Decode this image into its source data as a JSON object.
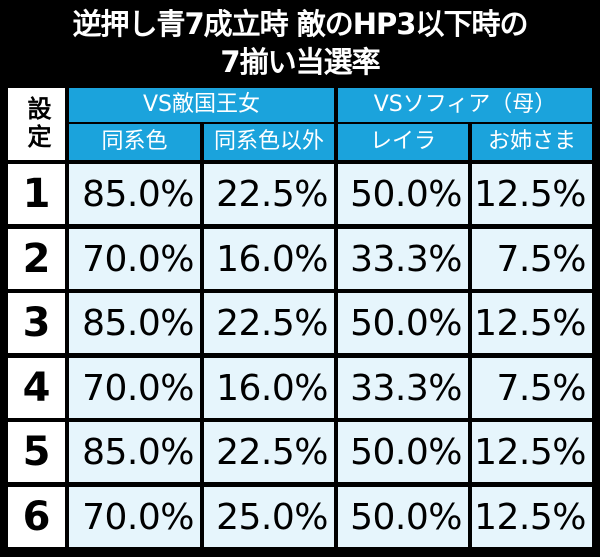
{
  "title": {
    "line1": "逆押し青7成立時 敵のHP3以下時の",
    "line2": "7揃い当選率"
  },
  "table": {
    "setting_header": "設定",
    "groups": [
      {
        "label": "VS敵国王女",
        "subs": [
          "同系色",
          "同系色以外"
        ]
      },
      {
        "label": "VSソフィア（母）",
        "subs": [
          "レイラ",
          "お姉さま"
        ]
      }
    ],
    "rows": [
      {
        "setting": "1",
        "values": [
          "85.0%",
          "22.5%",
          "50.0%",
          "12.5%"
        ]
      },
      {
        "setting": "2",
        "values": [
          "70.0%",
          "16.0%",
          "33.3%",
          "7.5%"
        ]
      },
      {
        "setting": "3",
        "values": [
          "85.0%",
          "22.5%",
          "50.0%",
          "12.5%"
        ]
      },
      {
        "setting": "4",
        "values": [
          "70.0%",
          "16.0%",
          "33.3%",
          "7.5%"
        ]
      },
      {
        "setting": "5",
        "values": [
          "85.0%",
          "22.5%",
          "50.0%",
          "12.5%"
        ]
      },
      {
        "setting": "6",
        "values": [
          "70.0%",
          "25.0%",
          "50.0%",
          "12.5%"
        ]
      }
    ]
  },
  "colors": {
    "background": "#000000",
    "header_blue": "#1ba3dc",
    "cell_light_blue": "#e6f5fc",
    "label_white": "#ffffff"
  }
}
